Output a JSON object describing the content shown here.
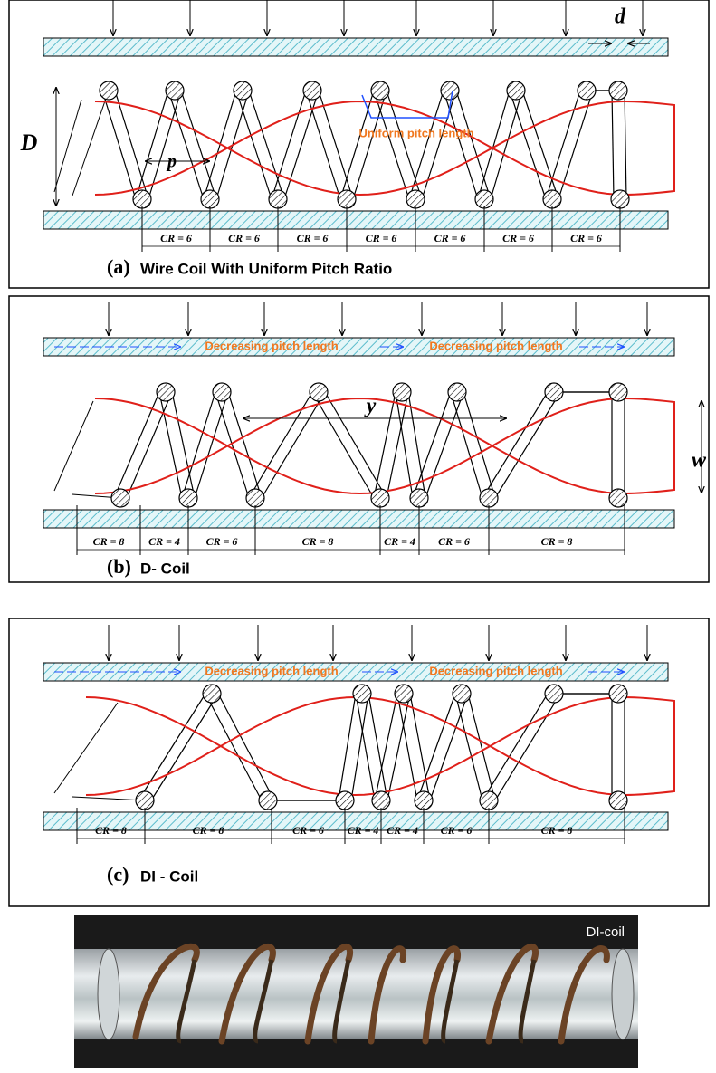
{
  "panels": [
    {
      "caption": {
        "label": "(a)",
        "title": "Wire Coil With Uniform Pitch Ratio"
      },
      "annotations": [
        "d",
        "D",
        "p",
        "Uniform pitch length"
      ],
      "cr_labels": [
        "CR = 6",
        "CR = 6",
        "CR = 6",
        "CR = 6",
        "CR = 6",
        "CR = 6",
        "CR = 6"
      ]
    },
    {
      "caption": {
        "label": "(b)",
        "title": "D- Coil"
      },
      "annotations": [
        "Decreasing pitch length",
        "Decreasing pitch length",
        "y",
        "w"
      ],
      "cr_labels": [
        "CR = 8",
        "CR = 4",
        "CR = 6",
        "CR = 8",
        "CR = 4",
        "CR = 6",
        "CR = 8"
      ]
    },
    {
      "caption": {
        "label": "(c)",
        "title": "DI - Coil"
      },
      "annotations": [
        "Decreasing pitch length",
        "Decreasing pitch length"
      ],
      "cr_labels": [
        "CR = 8",
        "CR = 8",
        "CR = 6",
        "CR = 4",
        "CR = 4",
        "CR = 6",
        "CR = 8"
      ]
    }
  ],
  "photo": {
    "label": "DI-coil"
  }
}
